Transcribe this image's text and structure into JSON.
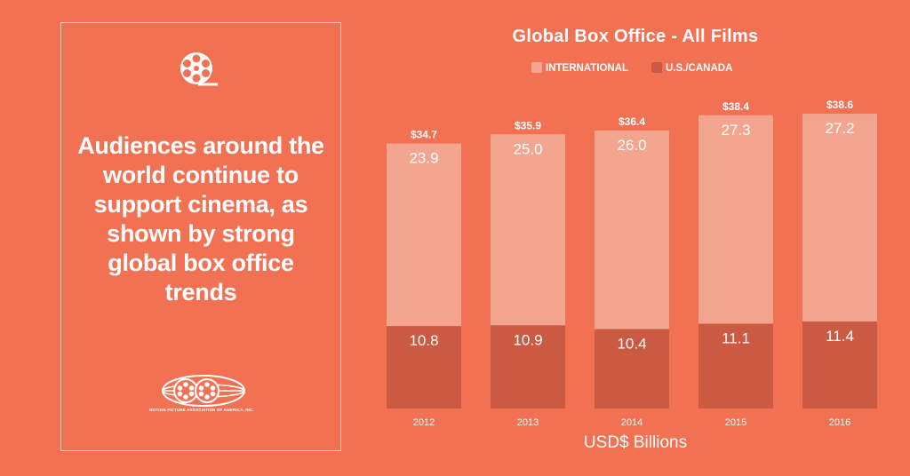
{
  "panel": {
    "headline": "Audiences around the\nworld continue to\nsupport cinema, as\nshown by strong\nglobal box office trends",
    "reel_icon": "film-reel-icon",
    "org_logo": "globe-reels-logo",
    "org_name": "MOTION PICTURE ASSOCIATION OF AMERICA, INC."
  },
  "colors": {
    "background": "#F27153",
    "international": "#F4A590",
    "us_canada": "#CB5A43",
    "text": "#FFFFFF"
  },
  "chart_data": {
    "type": "bar",
    "stacked": true,
    "title": "Global Box Office - All Films",
    "xlabel": "USD$ Billions",
    "ylabel": "",
    "categories": [
      "2012",
      "2013",
      "2014",
      "2015",
      "2016"
    ],
    "series": [
      {
        "name": "U.S./CANADA",
        "values": [
          10.8,
          10.9,
          10.4,
          11.1,
          11.4
        ],
        "labels": [
          "10.8",
          "10.9",
          "10.4",
          "11.1",
          "11.4"
        ]
      },
      {
        "name": "INTERNATIONAL",
        "values": [
          23.9,
          25.0,
          26.0,
          27.3,
          27.2
        ],
        "labels": [
          "23.9",
          "25.0",
          "26.0",
          "27.3",
          "27.2"
        ]
      }
    ],
    "totals": [
      "$34.7",
      "$35.9",
      "$36.4",
      "$38.4",
      "$38.6"
    ],
    "legend": [
      "INTERNATIONAL",
      "U.S./CANADA"
    ],
    "legend_position": "top",
    "ylim": [
      0,
      40
    ],
    "grid": false
  }
}
